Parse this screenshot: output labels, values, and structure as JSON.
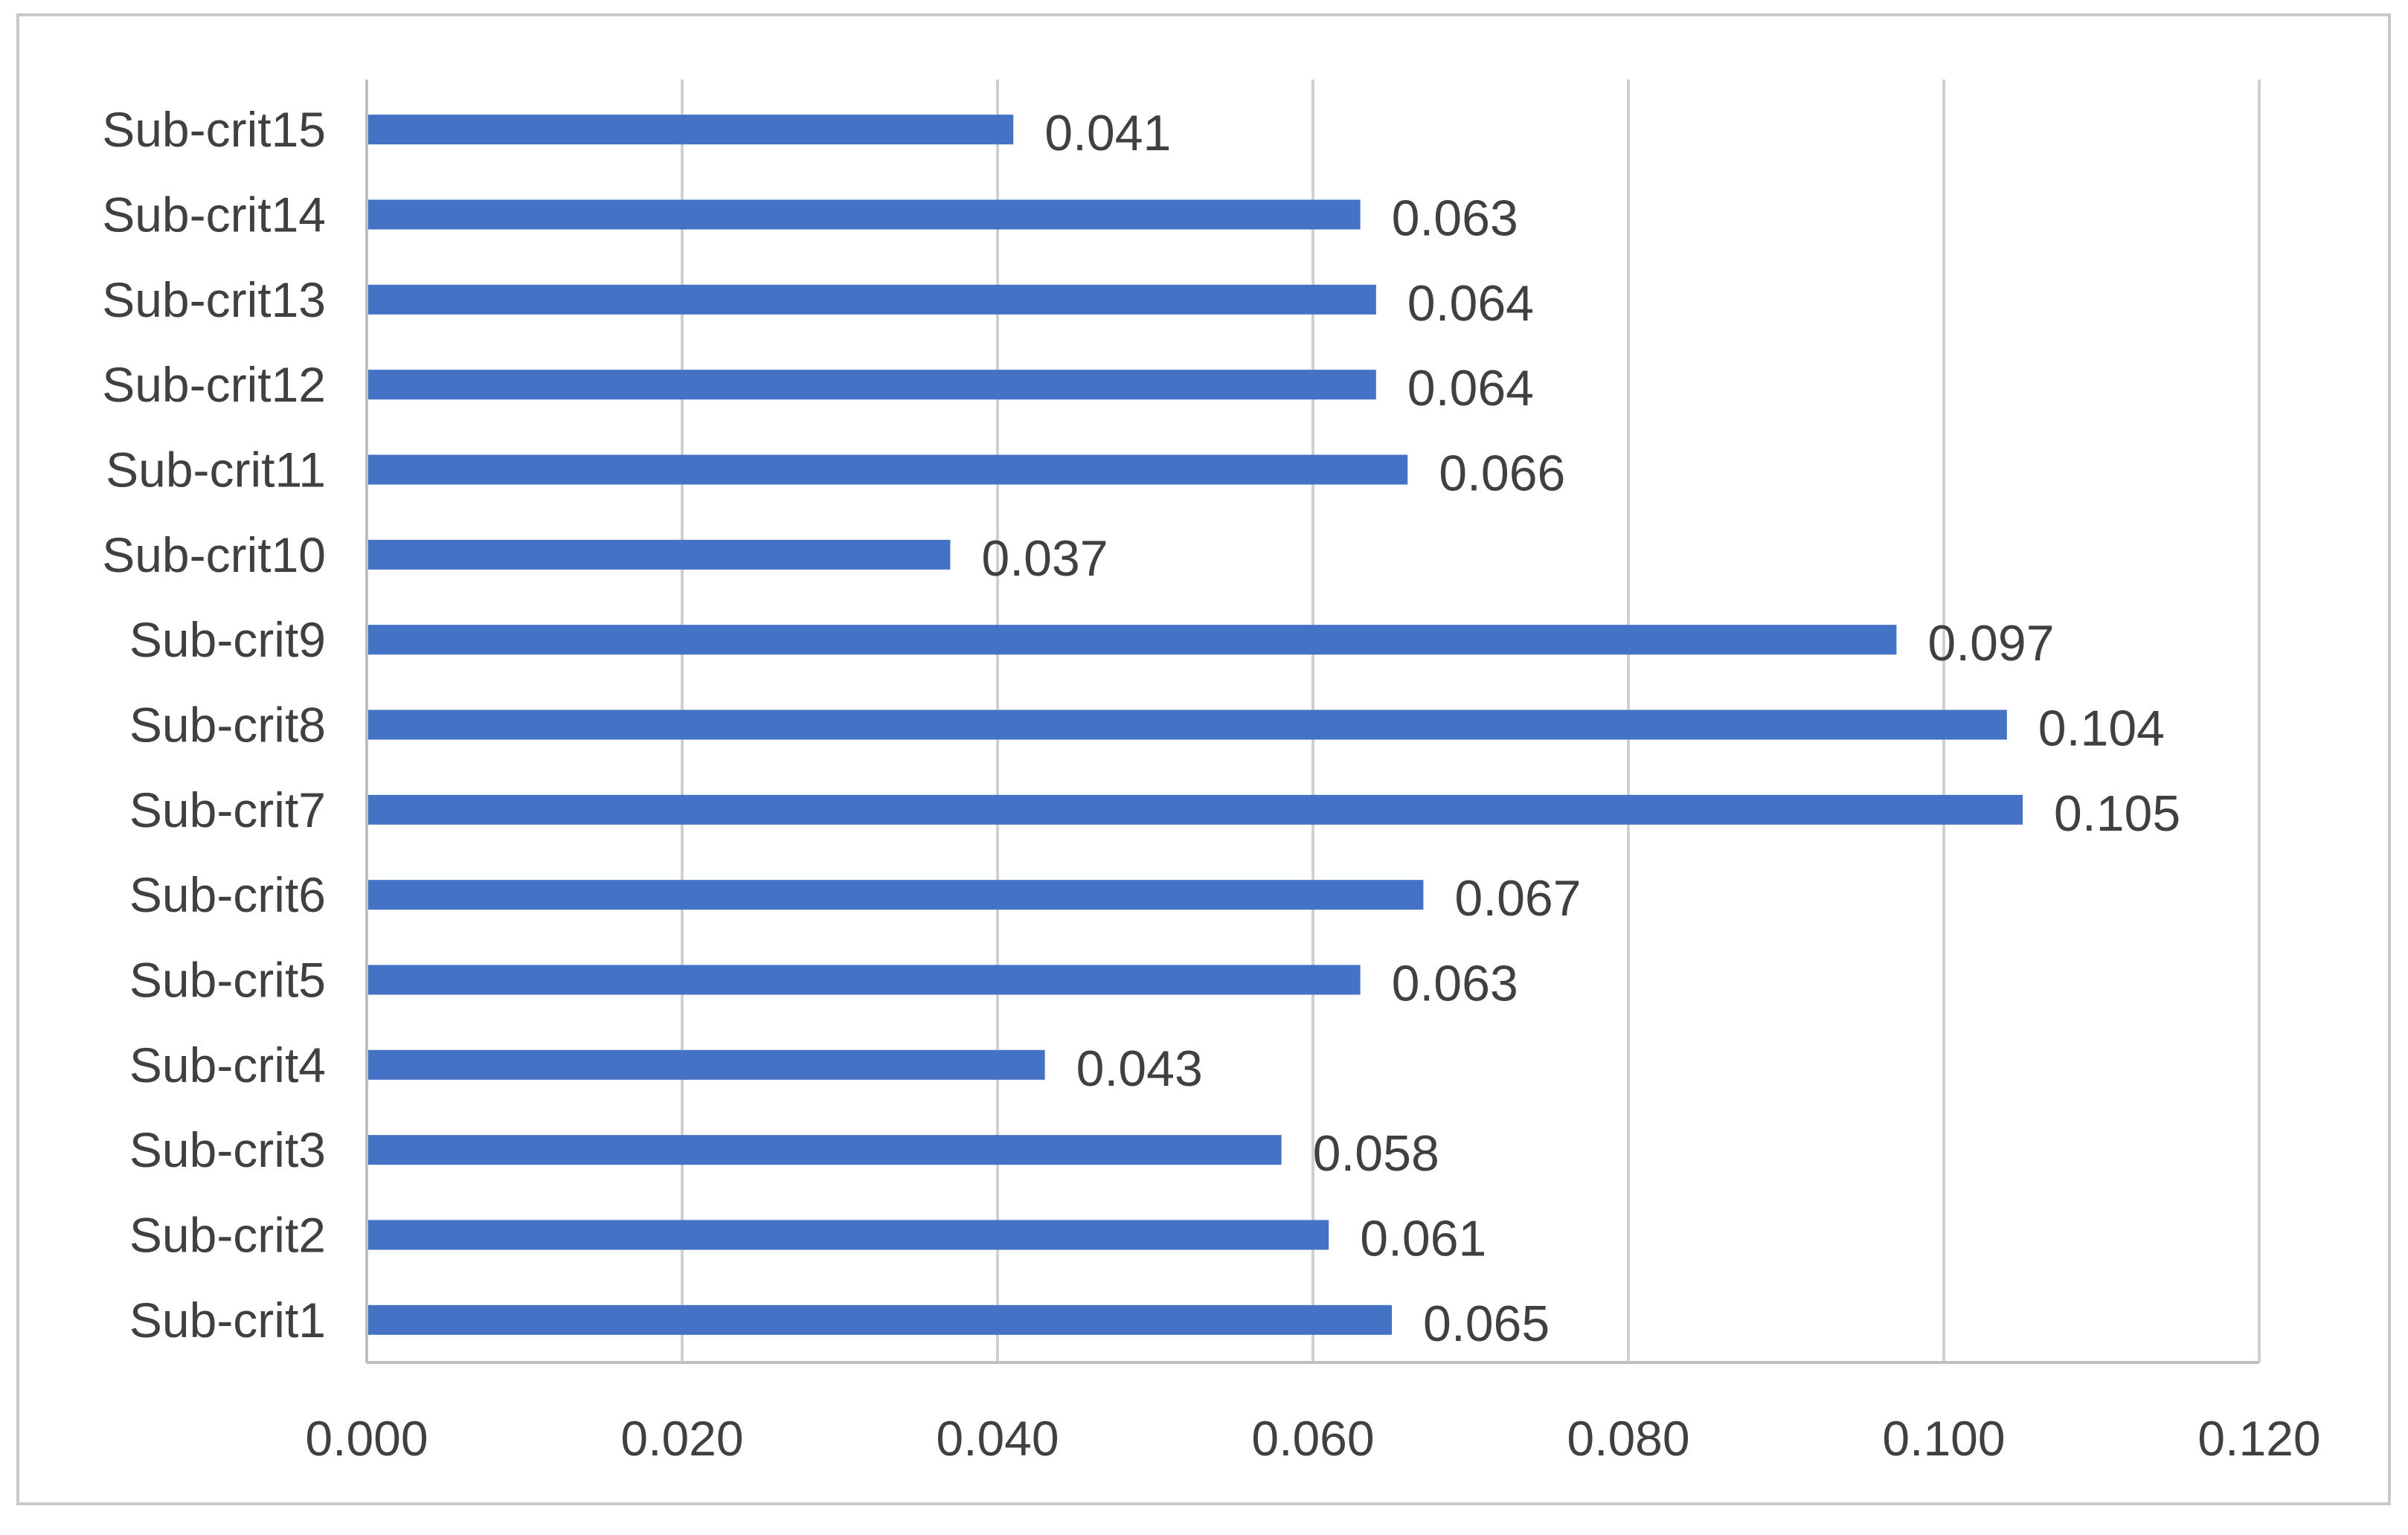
{
  "chart_data": {
    "type": "bar",
    "orientation": "horizontal",
    "categories": [
      "Sub-crit1",
      "Sub-crit2",
      "Sub-crit3",
      "Sub-crit4",
      "Sub-crit5",
      "Sub-crit6",
      "Sub-crit7",
      "Sub-crit8",
      "Sub-crit9",
      "Sub-crit10",
      "Sub-crit11",
      "Sub-crit12",
      "Sub-crit13",
      "Sub-crit14",
      "Sub-crit15"
    ],
    "values": [
      0.065,
      0.061,
      0.058,
      0.043,
      0.063,
      0.067,
      0.105,
      0.104,
      0.097,
      0.037,
      0.066,
      0.064,
      0.064,
      0.063,
      0.041
    ],
    "value_labels": [
      "0.065",
      "0.061",
      "0.058",
      "0.043",
      "0.063",
      "0.067",
      "0.105",
      "0.104",
      "0.097",
      "0.037",
      "0.066",
      "0.064",
      "0.064",
      "0.063",
      "0.041"
    ],
    "x_ticks": [
      "0.000",
      "0.020",
      "0.040",
      "0.060",
      "0.080",
      "0.100",
      "0.120"
    ],
    "xlim": [
      0,
      0.12
    ],
    "grid": "vertical",
    "legend": "none",
    "colors": {
      "bar": "#4472C4",
      "grid": "#d0d0d0",
      "axis": "#bfbfbf",
      "text": "#404040",
      "frame": "#c9c9c9"
    }
  }
}
